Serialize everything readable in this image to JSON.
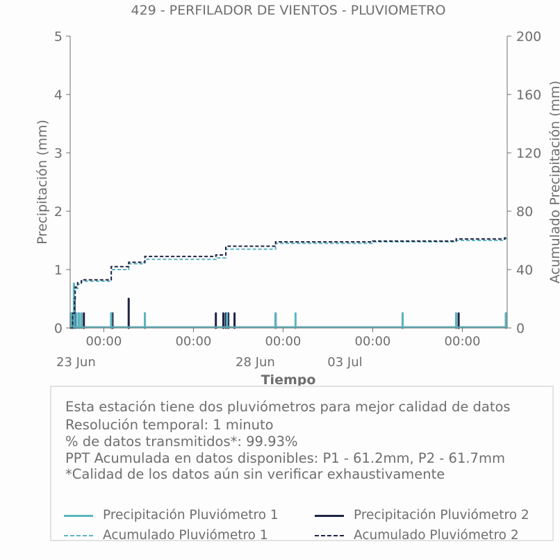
{
  "chart_data": {
    "type": "bar",
    "title": "429 - PERFILADOR DE VIENTOS - PLUVIOMETRO",
    "xlabel": "Tiempo",
    "ylabel": "Precipitación (mm)",
    "y2label": "Acumulado Precipitación (mm)",
    "ylim": [
      0,
      5
    ],
    "y2lim": [
      0,
      200
    ],
    "yticks": [
      "0",
      "1",
      "2",
      "3",
      "4",
      "5"
    ],
    "y2ticks": [
      "0",
      "40",
      "80",
      "120",
      "160",
      "200"
    ],
    "xlim": [
      "2023-06-21 21:00",
      "2023-07-06 12:00"
    ],
    "xticks": [
      {
        "t": "2023-06-23 00:00",
        "label": "00:00",
        "sublabel": "23 Jun"
      },
      {
        "t": "2023-06-26 00:00",
        "label": "00:00",
        "sublabel": ""
      },
      {
        "t": "2023-06-29 00:00",
        "label": "00:00",
        "sublabel": "28 Jun"
      },
      {
        "t": "2023-07-02 00:00",
        "label": "00:00",
        "sublabel": "03 Jul"
      },
      {
        "t": "2023-07-05 00:00",
        "label": "00:00",
        "sublabel": ""
      }
    ],
    "grid": false,
    "colors": {
      "p1": "#5bb5c2",
      "p2": "#1e2345"
    },
    "series": [
      {
        "name": "Precipitación Pluviómetro 1",
        "kind": "bar",
        "axis": "left",
        "points": [
          [
            "2023-06-21 22:00",
            0.25
          ],
          [
            "2023-06-22 00:00",
            0.76
          ],
          [
            "2023-06-22 02:00",
            0.25
          ],
          [
            "2023-06-22 04:00",
            0.25
          ],
          [
            "2023-06-22 06:00",
            0.25
          ],
          [
            "2023-06-23 06:00",
            0.25
          ],
          [
            "2023-06-24 09:00",
            0.25
          ],
          [
            "2023-06-27 03:00",
            0.25
          ],
          [
            "2023-06-28 18:00",
            0.25
          ],
          [
            "2023-06-29 10:00",
            0.25
          ],
          [
            "2023-07-03 00:00",
            0.25
          ],
          [
            "2023-07-04 19:00",
            0.25
          ],
          [
            "2023-07-06 11:00",
            0.25
          ]
        ]
      },
      {
        "name": "Precipitación Pluviómetro 2",
        "kind": "bar",
        "axis": "left",
        "points": [
          [
            "2023-06-21 21:30",
            0.25
          ],
          [
            "2023-06-21 23:00",
            0.25
          ],
          [
            "2023-06-22 00:30",
            0.5
          ],
          [
            "2023-06-22 02:00",
            0.25
          ],
          [
            "2023-06-22 04:00",
            0.25
          ],
          [
            "2023-06-22 06:00",
            0.25
          ],
          [
            "2023-06-22 08:00",
            0.25
          ],
          [
            "2023-06-23 06:00",
            0.25
          ],
          [
            "2023-06-23 07:00",
            0.25
          ],
          [
            "2023-06-23 20:00",
            0.5
          ],
          [
            "2023-06-24 09:00",
            0.25
          ],
          [
            "2023-06-26 18:00",
            0.25
          ],
          [
            "2023-06-27 00:00",
            0.25
          ],
          [
            "2023-06-27 02:00",
            0.25
          ],
          [
            "2023-06-27 04:00",
            0.25
          ],
          [
            "2023-06-27 09:00",
            0.25
          ],
          [
            "2023-06-28 18:00",
            0.25
          ],
          [
            "2023-07-03 00:00",
            0.25
          ],
          [
            "2023-07-04 19:00",
            0.25
          ],
          [
            "2023-07-04 21:00",
            0.25
          ],
          [
            "2023-07-06 11:00",
            0.25
          ]
        ]
      },
      {
        "name": "Acumulado Pluviómetro 1",
        "kind": "step",
        "axis": "right",
        "dashed": true,
        "points": [
          [
            "2023-06-21 21:00",
            0
          ],
          [
            "2023-06-21 23:00",
            8
          ],
          [
            "2023-06-22 00:00",
            18
          ],
          [
            "2023-06-22 01:00",
            27
          ],
          [
            "2023-06-22 03:00",
            30
          ],
          [
            "2023-06-22 06:00",
            32
          ],
          [
            "2023-06-23 06:00",
            40
          ],
          [
            "2023-06-23 20:00",
            44
          ],
          [
            "2023-06-24 09:00",
            47
          ],
          [
            "2023-06-26 18:00",
            48
          ],
          [
            "2023-06-27 02:00",
            54
          ],
          [
            "2023-06-28 18:00",
            58
          ],
          [
            "2023-07-02 00:00",
            59
          ],
          [
            "2023-07-04 19:00",
            60
          ],
          [
            "2023-07-06 10:00",
            61.2
          ],
          [
            "2023-07-06 12:00",
            61.2
          ]
        ]
      },
      {
        "name": "Acumulado Pluviómetro 2",
        "kind": "step",
        "axis": "right",
        "dashed": true,
        "points": [
          [
            "2023-06-21 21:00",
            0
          ],
          [
            "2023-06-21 23:00",
            10
          ],
          [
            "2023-06-22 00:30",
            20
          ],
          [
            "2023-06-22 01:00",
            28
          ],
          [
            "2023-06-22 03:00",
            31
          ],
          [
            "2023-06-22 06:00",
            33
          ],
          [
            "2023-06-23 06:00",
            42
          ],
          [
            "2023-06-23 20:00",
            45
          ],
          [
            "2023-06-24 09:00",
            49
          ],
          [
            "2023-06-26 18:00",
            50
          ],
          [
            "2023-06-27 02:00",
            56
          ],
          [
            "2023-06-28 18:00",
            59
          ],
          [
            "2023-07-02 00:00",
            59.5
          ],
          [
            "2023-07-04 19:00",
            61
          ],
          [
            "2023-07-06 10:00",
            61.7
          ],
          [
            "2023-07-06 12:00",
            61.7
          ]
        ]
      }
    ]
  },
  "info": {
    "lines": [
      "Esta estación tiene dos pluviómetros para mejor calidad de datos",
      "Resolución temporal: 1 minuto",
      "% de datos transmitidos*: 99.93%",
      "PPT Acumulada en datos disponibles: P1 - 61.2mm, P2 - 61.7mm",
      "*Calidad de los datos aún sin verificar exhaustivamente"
    ]
  },
  "legend": {
    "p1_bar": "Precipitación Pluviómetro 1",
    "p2_bar": "Precipitación Pluviómetro 2",
    "p1_acc": "Acumulado Pluviómetro 1",
    "p2_acc": "Acumulado Pluviómetro 2"
  }
}
